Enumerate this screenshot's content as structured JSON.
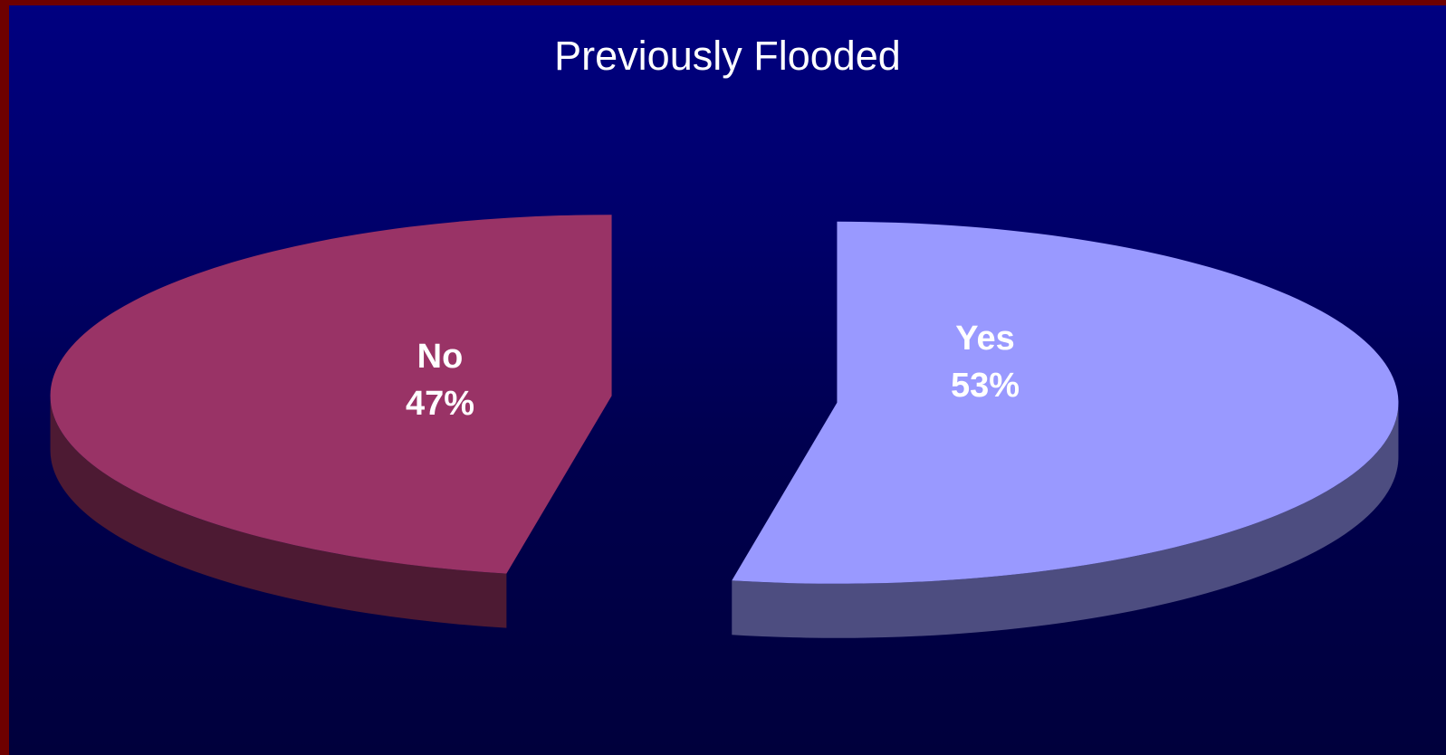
{
  "chart_data": {
    "type": "pie",
    "title": "Previously Flooded",
    "style": "3d-exploded",
    "slices": [
      {
        "label": "No",
        "value": 47,
        "value_label": "47%",
        "color": "#993366",
        "side_color": "#4d1a33"
      },
      {
        "label": "Yes",
        "value": 53,
        "value_label": "53%",
        "color": "#9999ff",
        "side_color": "#4d4d80"
      }
    ]
  }
}
